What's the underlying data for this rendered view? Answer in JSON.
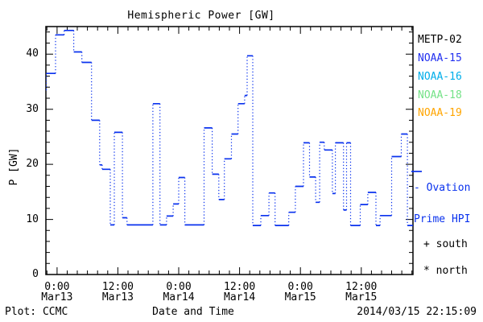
{
  "title": "Hemispheric Power [GW]",
  "footer": {
    "left": "Plot: CCMC",
    "center": "Date and Time",
    "right": "2014/03/15 22:15:09"
  },
  "legend": {
    "satellites": [
      {
        "label": "METP-02",
        "color": "#000000"
      },
      {
        "label": "NOAA-15",
        "color": "#2230f0"
      },
      {
        "label": "NOAA-16",
        "color": "#00aeea"
      },
      {
        "label": "NOAA-18",
        "color": "#74e287"
      },
      {
        "label": "NOAA-19",
        "color": "#ffa500"
      }
    ],
    "model_line1": "- Ovation",
    "model_line2": "Prime HPI",
    "model_color": "#0a32ee",
    "markers": [
      {
        "symbol": "+",
        "label": "south"
      },
      {
        "symbol": "*",
        "label": "north"
      }
    ]
  },
  "chart_data": {
    "type": "line",
    "style": "steps, solid level dashes with dotted vertical connectors",
    "title": "Hemispheric Power [GW]",
    "xlabel": "Date and Time",
    "ylabel": "P [GW]",
    "line_color": "#0a32ee",
    "time_axis_note": "x in hours relative to 2014-03-13 00:00",
    "xlim": [
      -2.2,
      70.2
    ],
    "ylim": [
      0,
      45
    ],
    "x_major_ticks": [
      0,
      12,
      24,
      36,
      48,
      60
    ],
    "x_major_labels": [
      [
        "0:00",
        "Mar13"
      ],
      [
        "12:00",
        "Mar13"
      ],
      [
        "0:00",
        "Mar14"
      ],
      [
        "12:00",
        "Mar14"
      ],
      [
        "0:00",
        "Mar15"
      ],
      [
        "12:00",
        "Mar15"
      ]
    ],
    "x_minor_step": 2,
    "y_major_ticks": [
      0,
      10,
      20,
      30,
      40
    ],
    "y_minor_step": 2,
    "grid": false,
    "series": [
      {
        "name": "Ovation Prime HPI [GW]",
        "steps": [
          [
            -2.2,
            33.5
          ],
          [
            -2.1,
            36.5
          ],
          [
            -0.3,
            43.5
          ],
          [
            1.4,
            44.3
          ],
          [
            3.3,
            40.4
          ],
          [
            4.9,
            38.5
          ],
          [
            6.8,
            28.0
          ],
          [
            8.4,
            19.9
          ],
          [
            8.9,
            19.1
          ],
          [
            10.5,
            9.0
          ],
          [
            11.3,
            25.8
          ],
          [
            12.9,
            10.3
          ],
          [
            13.8,
            9.0
          ],
          [
            18.9,
            31.0
          ],
          [
            20.3,
            9.0
          ],
          [
            21.6,
            10.6
          ],
          [
            22.9,
            12.8
          ],
          [
            24.0,
            17.6
          ],
          [
            25.2,
            9.0
          ],
          [
            29.0,
            26.6
          ],
          [
            30.6,
            18.2
          ],
          [
            31.9,
            13.6
          ],
          [
            33.0,
            21.0
          ],
          [
            34.4,
            25.5
          ],
          [
            35.7,
            31.0
          ],
          [
            37.0,
            32.5
          ],
          [
            37.5,
            39.7
          ],
          [
            38.6,
            8.9
          ],
          [
            40.2,
            10.7
          ],
          [
            41.8,
            14.8
          ],
          [
            43.0,
            8.9
          ],
          [
            45.7,
            11.3
          ],
          [
            47.0,
            16.0
          ],
          [
            48.6,
            23.9
          ],
          [
            49.8,
            17.7
          ],
          [
            51.0,
            13.1
          ],
          [
            51.8,
            24.0
          ],
          [
            52.7,
            22.6
          ],
          [
            54.3,
            14.7
          ],
          [
            54.9,
            23.9
          ],
          [
            56.5,
            11.7
          ],
          [
            57.1,
            23.9
          ],
          [
            57.9,
            8.9
          ],
          [
            59.8,
            12.7
          ],
          [
            61.3,
            14.9
          ],
          [
            62.9,
            8.9
          ],
          [
            63.7,
            10.7
          ],
          [
            66.0,
            21.4
          ],
          [
            67.9,
            25.5
          ],
          [
            69.1,
            8.9
          ]
        ],
        "end_x": 70.2
      }
    ]
  }
}
